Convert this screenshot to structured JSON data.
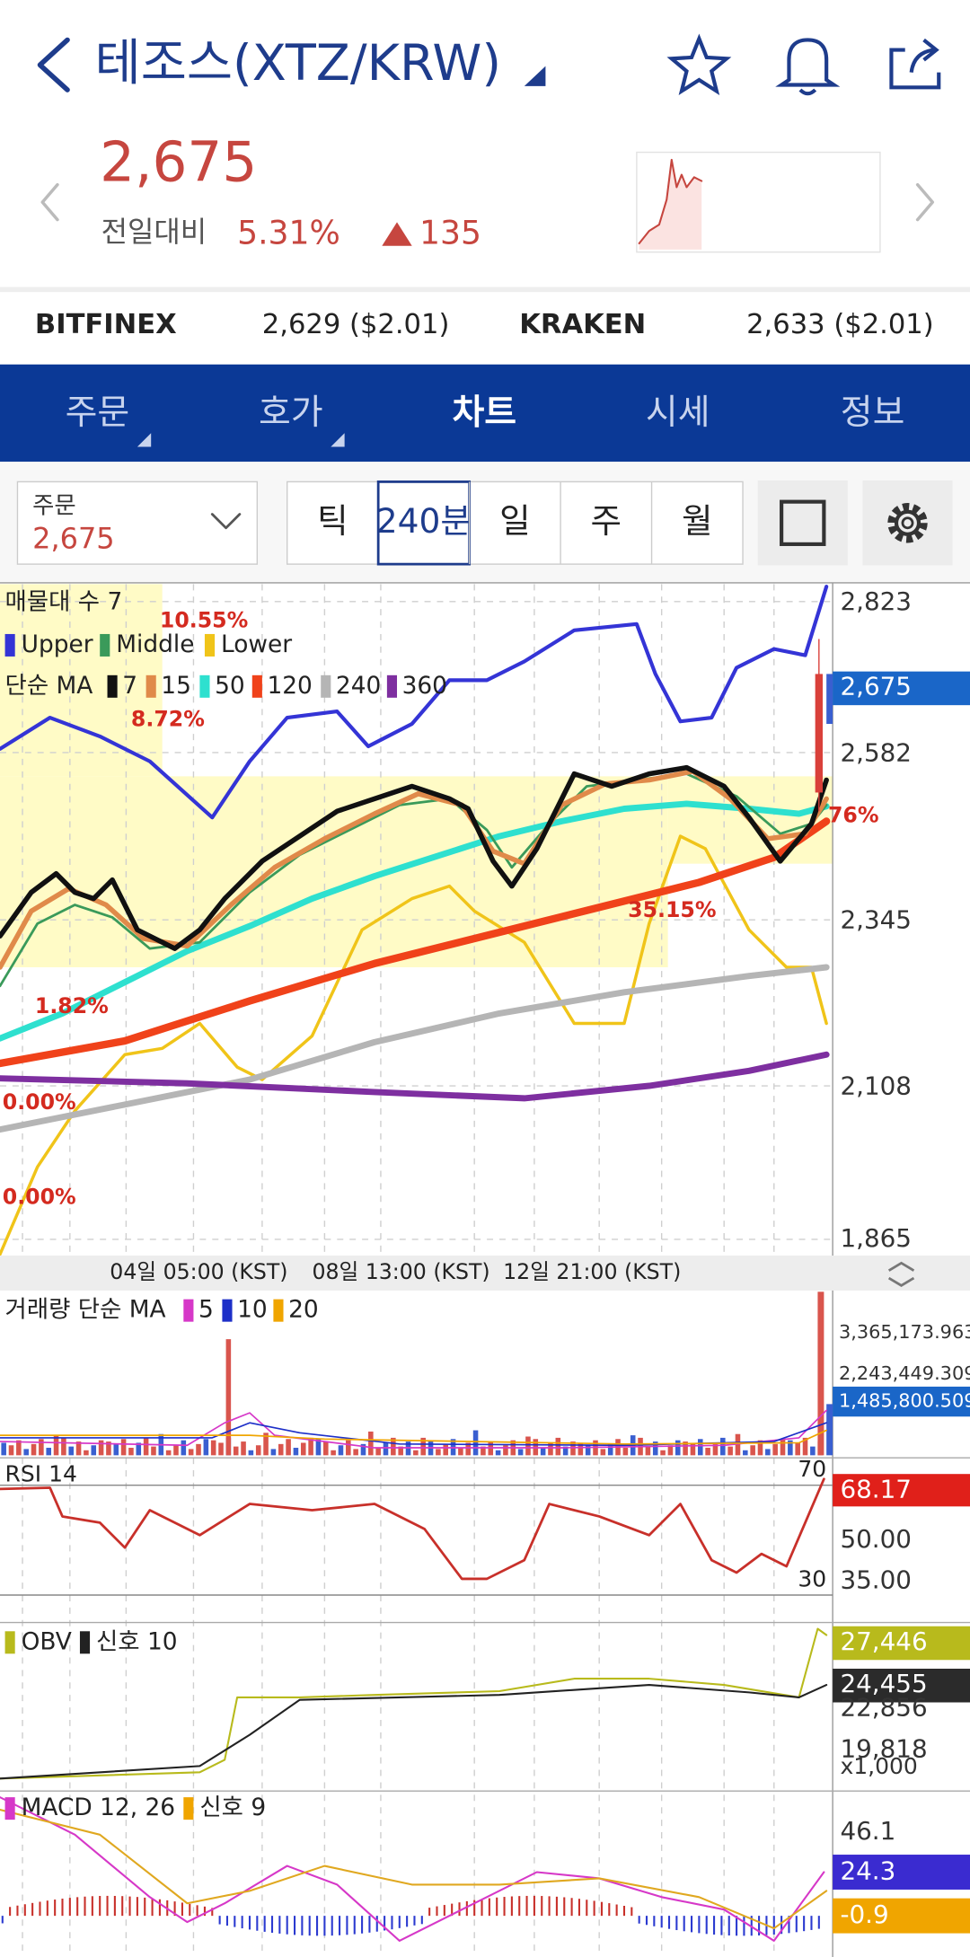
{
  "header": {
    "title": "테조스(XTZ/KRW)",
    "price": "2,675",
    "compare_label": "전일대비",
    "change_pct": "5.31%",
    "change": "135"
  },
  "exchanges": [
    {
      "name": "BITFINEX",
      "price": "2,629 ($2.01)"
    },
    {
      "name": "KRAKEN",
      "price": "2,633 ($2.01)"
    }
  ],
  "tabs": [
    "주문",
    "호가",
    "차트",
    "시세",
    "정보"
  ],
  "toolbar": {
    "order_label": "주문",
    "order_price": "2,675",
    "periods": [
      "틱",
      "240분",
      "일",
      "주",
      "월"
    ]
  },
  "price_chart": {
    "legend_volume_profile": "매물대 수 7",
    "bands": [
      "Upper",
      "Middle",
      "Lower"
    ],
    "ma_label": "단순 MA",
    "ma": [
      "7",
      "15",
      "50",
      "120",
      "240",
      "360"
    ],
    "annotations": [
      "10.55%",
      "8.72%",
      "1.82%",
      "0.00%",
      "0.00%",
      "35.15%",
      "76%"
    ],
    "axis": [
      "2,823",
      "2,675",
      "2,582",
      "2,345",
      "2,108",
      "1,865"
    ],
    "time_labels": [
      "04일 05:00 (KST)",
      "08일 13:00 (KST)",
      "12일 21:00 (KST)"
    ]
  },
  "volume": {
    "label": "거래량 단순 MA",
    "ma": [
      "5",
      "10",
      "20"
    ],
    "axis": [
      "3,365,173.963",
      "2,243,449.309",
      "1,485,800.509"
    ]
  },
  "rsi": {
    "label": "RSI 14",
    "upper": "70",
    "lower": "30",
    "axis": [
      "68.17",
      "50.00",
      "35.00"
    ]
  },
  "obv": {
    "label": "OBV",
    "signal": "신호 10",
    "axis": [
      "27,446",
      "24,455",
      "22,856",
      "19,818",
      "x1,000"
    ]
  },
  "macd": {
    "label": "MACD 12, 26",
    "signal": "신호 9",
    "axis": [
      "46.1",
      "24.3",
      "-0.9"
    ]
  }
}
